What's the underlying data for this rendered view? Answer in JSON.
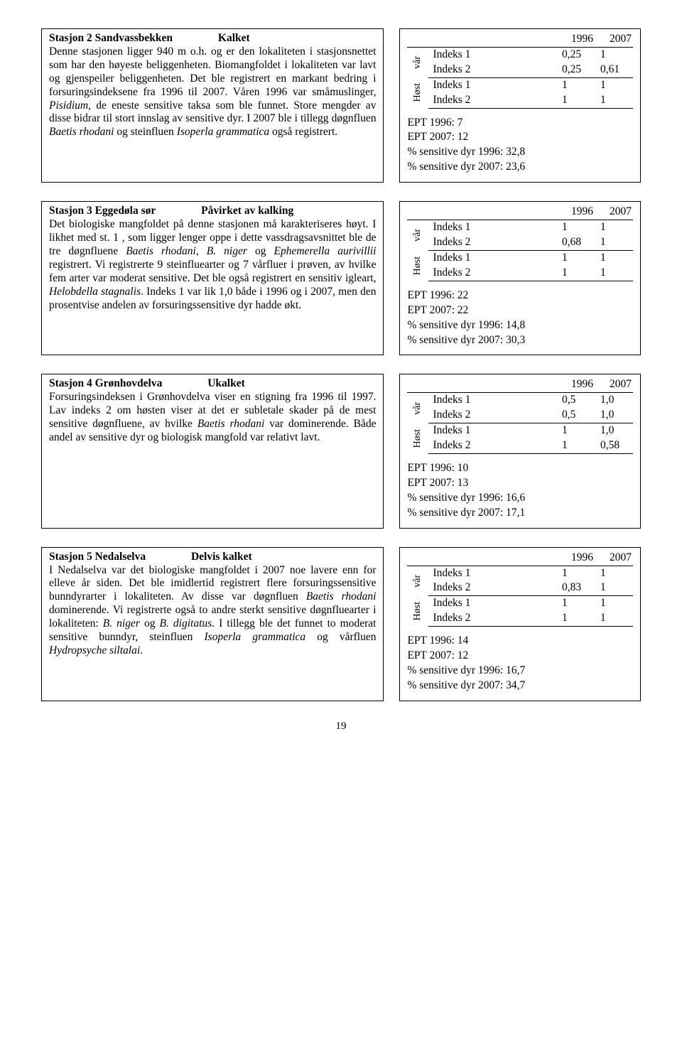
{
  "years": [
    "1996",
    "2007"
  ],
  "rowlabels": {
    "var": "vår",
    "host": "Høst",
    "i1": "Indeks 1",
    "i2": "Indeks 2"
  },
  "page_number": "19",
  "stations": [
    {
      "title": "Stasjon 2 Sandvassbekken",
      "status": "Kalket",
      "body_html": "Denne stasjonen ligger 940 m o.h. og er den lokaliteten i stasjonsnettet som har den høyeste beliggenheten. Biomangfoldet i lokaliteten var lavt og gjenspeiler beliggenheten. Det ble registrert en markant bedring i forsuringsindeksene fra 1996 til 2007. Våren 1996 var småmuslinger, <i>Pisidium</i>, de eneste sensitive taksa som ble funnet. Store mengder av disse bidrar til stort innslag av sensitive dyr. I 2007 ble i tillegg døgnfluen <i>Baetis rhodani</i> og steinfluen <i>Isoperla grammatica</i> også registrert.",
      "table": {
        "var": {
          "i1": [
            "0,25",
            "1"
          ],
          "i2": [
            "0,25",
            "0,61"
          ]
        },
        "host": {
          "i1": [
            "1",
            "1"
          ],
          "i2": [
            "1",
            "1"
          ]
        }
      },
      "summary": [
        "EPT 1996:  7",
        "EPT 2007:  12",
        "% sensitive dyr 1996: 32,8",
        "% sensitive dyr 2007: 23,6"
      ]
    },
    {
      "title": "Stasjon 3 Eggedøla sør",
      "status": "Påvirket av kalking",
      "body_html": "Det biologiske mangfoldet på denne stasjonen må karakteriseres høyt. I likhet med st. 1 , som ligger lenger oppe i dette vassdragsavsnittet ble de tre døgnfluene <i>Baetis rhodani</i>, <i>B. niger</i> og <i>Ephemerella aurivillii</i> registrert. Vi registrerte 9 steinfluearter og 7 vårfluer i prøven, av hvilke fem arter var moderat sensitive. Det ble også registrert en sensitiv igleart, <i>Helobdella stagnalis</i>. Indeks 1 var lik 1,0 både i 1996 og i 2007, men den prosentvise andelen av forsuringssensitive dyr hadde økt.",
      "table": {
        "var": {
          "i1": [
            "1",
            "1"
          ],
          "i2": [
            "0,68",
            "1"
          ]
        },
        "host": {
          "i1": [
            "1",
            "1"
          ],
          "i2": [
            "1",
            "1"
          ]
        }
      },
      "summary": [
        "EPT 1996:  22",
        "EPT 2007:  22",
        "% sensitive dyr 1996: 14,8",
        "% sensitive dyr 2007: 30,3"
      ]
    },
    {
      "title": "Stasjon 4 Grønhovdelva",
      "status": "Ukalket",
      "body_html": "Forsuringsindeksen i Grønhovdelva viser en stigning fra 1996 til 1997. Lav indeks 2 om høsten viser at det er subletale skader på de mest sensitive døgnfluene, av hvilke <i>Baetis rhodani</i> var dominerende. Både andel av sensitive dyr og biologisk mangfold var relativt lavt.",
      "table": {
        "var": {
          "i1": [
            "0,5",
            "1,0"
          ],
          "i2": [
            "0,5",
            "1,0"
          ]
        },
        "host": {
          "i1": [
            "1",
            "1,0"
          ],
          "i2": [
            "1",
            "0,58"
          ]
        }
      },
      "summary": [
        "EPT 1996:  10",
        "EPT 2007:  13",
        "% sensitive dyr 1996: 16,6",
        "% sensitive dyr 2007: 17,1"
      ]
    },
    {
      "title": "Stasjon 5 Nedalselva",
      "status": "Delvis kalket",
      "body_html": "I Nedalselva var det biologiske mangfoldet i 2007 noe lavere enn for elleve år siden. Det ble imidlertid registrert flere forsuringssensitive bunndyrarter i lokaliteten. Av disse var døgnfluen <i>Baetis rhodani</i> dominerende. Vi registrerte også to andre sterkt sensitive døgnfluearter i lokaliteten: <i>B. niger</i> og <i>B. digitatus</i>. I tillegg ble det funnet to moderat sensitive bunndyr, steinfluen <i>Isoperla grammatica</i> og vårfluen <i>Hydropsyche siltalai</i>.",
      "table": {
        "var": {
          "i1": [
            "1",
            "1"
          ],
          "i2": [
            "0,83",
            "1"
          ]
        },
        "host": {
          "i1": [
            "1",
            "1"
          ],
          "i2": [
            "1",
            "1"
          ]
        }
      },
      "summary": [
        "EPT 1996:  14",
        "EPT 2007:  12",
        "% sensitive dyr 1996: 16,7",
        "% sensitive dyr 2007: 34,7"
      ]
    }
  ]
}
